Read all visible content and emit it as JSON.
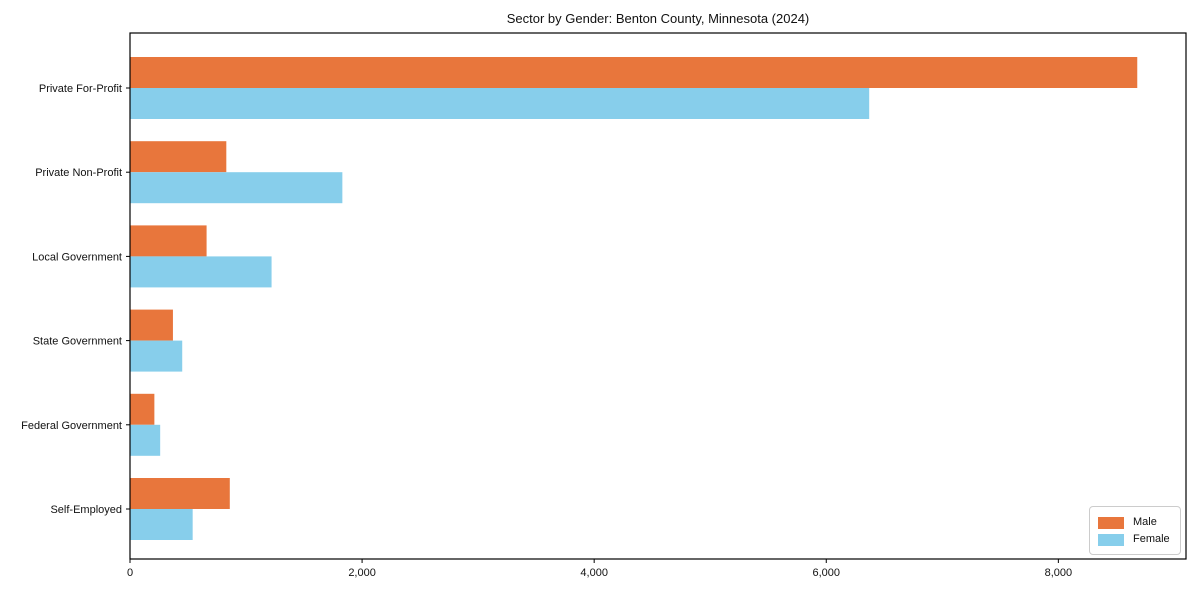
{
  "figure": {
    "background": "#ffffff",
    "axes_border_color": "#000000"
  },
  "chart_data": {
    "type": "bar",
    "orientation": "horizontal",
    "title": "Sector by Gender: Benton County, Minnesota (2024)",
    "categories": [
      "Private For-Profit",
      "Private Non-Profit",
      "Local Government",
      "State Government",
      "Federal Government",
      "Self-Employed"
    ],
    "series": [
      {
        "name": "Male",
        "color": "#e8763c",
        "values": [
          8680,
          830,
          660,
          370,
          210,
          860
        ]
      },
      {
        "name": "Female",
        "color": "#87ceeb",
        "values": [
          6370,
          1830,
          1220,
          450,
          260,
          540
        ]
      }
    ],
    "xlabel": "",
    "ylabel": "",
    "xlim": [
      0,
      9100
    ],
    "xticks": [
      0,
      2000,
      4000,
      6000,
      8000
    ],
    "xtick_labels": [
      "0",
      "2,000",
      "4,000",
      "6,000",
      "8,000"
    ],
    "grid": false,
    "legend_position": "lower right"
  }
}
